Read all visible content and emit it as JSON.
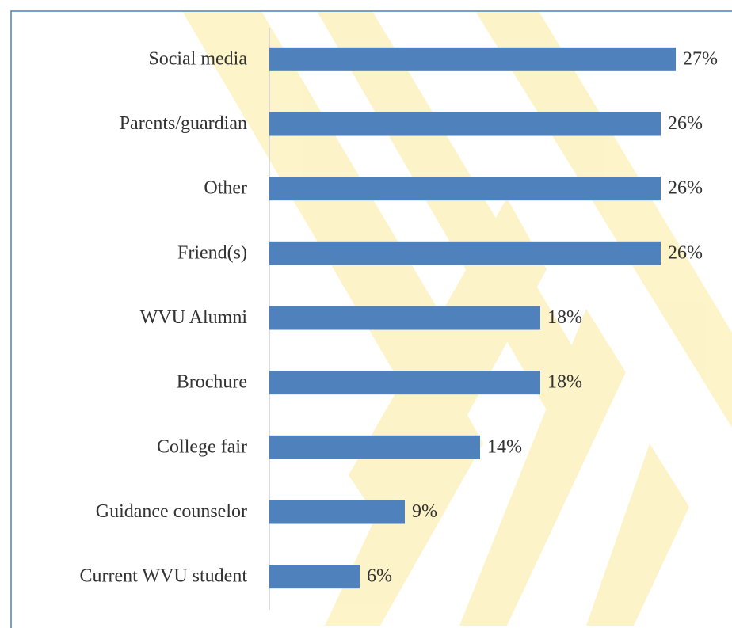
{
  "chart_data": {
    "type": "bar",
    "orientation": "horizontal",
    "categories": [
      "Social media",
      "Parents/guardian",
      "Other",
      "Friend(s)",
      "WVU Alumni",
      "Brochure",
      "College fair",
      "Guidance counselor",
      "Current WVU student"
    ],
    "values": [
      27,
      26,
      26,
      26,
      18,
      18,
      14,
      9,
      6
    ],
    "value_labels": [
      "27%",
      "26%",
      "26%",
      "26%",
      "18%",
      "18%",
      "14%",
      "9%",
      "6%"
    ],
    "color": "#4f81bd",
    "xlim": [
      0,
      30
    ]
  }
}
